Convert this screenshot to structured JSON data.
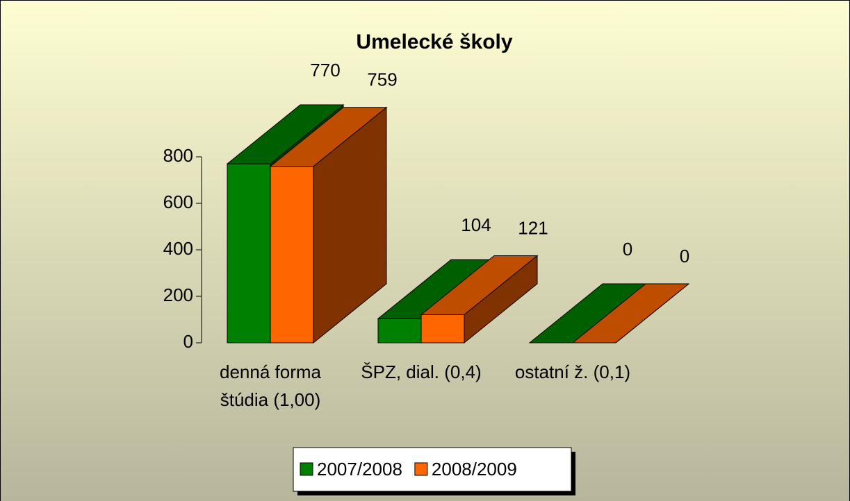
{
  "chart_data": {
    "type": "bar3d",
    "title": "Umelecké školy",
    "categories": [
      "denná forma štúdia (1,00)",
      "ŠPZ, dial. (0,4)",
      "ostatní ž. (0,1)"
    ],
    "series": [
      {
        "name": "2007/2008",
        "color": "#008000",
        "values": [
          770,
          104,
          0
        ]
      },
      {
        "name": "2008/2009",
        "color": "#ff6600",
        "values": [
          759,
          121,
          0
        ]
      }
    ],
    "ylim": [
      0,
      800
    ],
    "yticks": [
      0,
      200,
      400,
      600,
      800
    ],
    "legend": "bottom"
  }
}
